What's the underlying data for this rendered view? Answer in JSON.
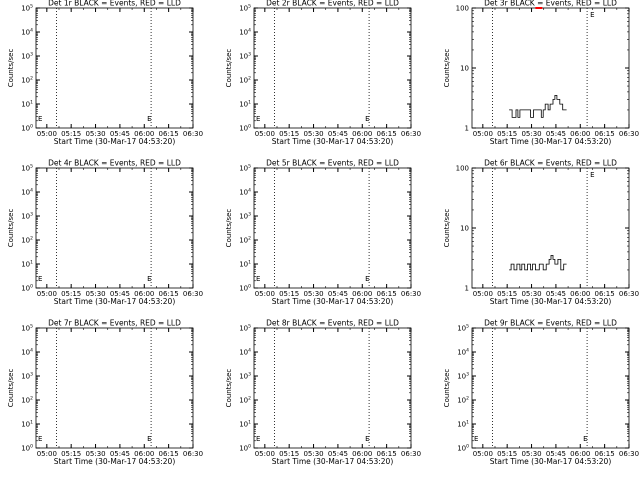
{
  "chart_data": [
    {
      "type": "line",
      "title": "Det 1r BLACK = Events, RED = LLD",
      "ylabel": "Counts/sec",
      "xlabel": "Start Time (30-Mar-17 04:53:20)",
      "yscale": "log",
      "ylim_exp": [
        0,
        5
      ],
      "flag_label": "E",
      "series": []
    },
    {
      "type": "line",
      "title": "Det 2r BLACK = Events, RED = LLD",
      "ylabel": "Counts/sec",
      "xlabel": "Start Time (30-Mar-17 04:53:20)",
      "yscale": "log",
      "ylim_exp": [
        0,
        5
      ],
      "flag_label": "E",
      "series": []
    },
    {
      "type": "line",
      "title": "Det 3r BLACK = Events, RED = LLD",
      "ylabel": "Counts/sec",
      "xlabel": "Start Time (30-Mar-17 04:53:20)",
      "yscale": "log",
      "ylim": [
        1,
        100
      ],
      "flag_label": "E",
      "series": [
        {
          "color": "#000000",
          "x": [
            5.27,
            5.3,
            5.3,
            5.34,
            5.34,
            5.36,
            5.36,
            5.38,
            5.38,
            5.49,
            5.49,
            5.52,
            5.52,
            5.55,
            5.55,
            5.6,
            5.6,
            5.62,
            5.62,
            5.64,
            5.64,
            5.67,
            5.67,
            5.69,
            5.69,
            5.72,
            5.72,
            5.74,
            5.74,
            5.76,
            5.76,
            5.79,
            5.79,
            5.82,
            5.82,
            5.86
          ],
          "y": [
            2,
            2,
            1.5,
            1.5,
            2,
            2,
            1.5,
            1.5,
            2,
            2,
            1.5,
            1.5,
            2,
            2,
            2,
            2,
            1.5,
            1.5,
            2,
            2,
            2.5,
            2.5,
            2,
            2,
            2.5,
            2.5,
            3,
            3,
            3.5,
            3.5,
            3,
            3,
            2.5,
            2.5,
            2,
            2
          ]
        },
        {
          "color": "#ff0000",
          "x": [
            5.54,
            5.61
          ],
          "y": [
            100,
            100
          ]
        }
      ]
    },
    {
      "type": "line",
      "title": "Det 4r BLACK = Events, RED = LLD",
      "ylabel": "Counts/sec",
      "xlabel": "Start Time (30-Mar-17 04:53:20)",
      "yscale": "log",
      "ylim_exp": [
        0,
        5
      ],
      "flag_label": "E",
      "series": []
    },
    {
      "type": "line",
      "title": "Det 5r BLACK = Events, RED = LLD",
      "ylabel": "Counts/sec",
      "xlabel": "Start Time (30-Mar-17 04:53:20)",
      "yscale": "log",
      "ylim_exp": [
        0,
        5
      ],
      "flag_label": "E",
      "series": []
    },
    {
      "type": "line",
      "title": "Det 6r BLACK = Events, RED = LLD",
      "ylabel": "Counts/sec",
      "xlabel": "Start Time (30-Mar-17 04:53:20)",
      "yscale": "log",
      "ylim": [
        1,
        100
      ],
      "flag_label": "E",
      "series": [
        {
          "color": "#000000",
          "x": [
            5.27,
            5.29,
            5.29,
            5.32,
            5.32,
            5.35,
            5.35,
            5.38,
            5.38,
            5.4,
            5.4,
            5.43,
            5.43,
            5.46,
            5.46,
            5.49,
            5.49,
            5.51,
            5.51,
            5.54,
            5.54,
            5.58,
            5.58,
            5.62,
            5.62,
            5.65,
            5.65,
            5.68,
            5.68,
            5.7,
            5.7,
            5.72,
            5.72,
            5.74,
            5.74,
            5.77,
            5.77,
            5.8,
            5.8,
            5.83,
            5.83,
            5.86
          ],
          "y": [
            2,
            2,
            2.5,
            2.5,
            2,
            2,
            2.5,
            2.5,
            2,
            2,
            2.5,
            2.5,
            2,
            2,
            2.5,
            2.5,
            2,
            2,
            2.5,
            2.5,
            2,
            2,
            2.5,
            2.5,
            2,
            2,
            2.5,
            2.5,
            3,
            3,
            3.5,
            3.5,
            3,
            3,
            2.5,
            2.5,
            3,
            3,
            2,
            2,
            2.5,
            2.5
          ]
        }
      ]
    },
    {
      "type": "line",
      "title": "Det 7r BLACK = Events, RED = LLD",
      "ylabel": "Counts/sec",
      "xlabel": "Start Time (30-Mar-17 04:53:20)",
      "yscale": "log",
      "ylim_exp": [
        0,
        5
      ],
      "flag_label": "E",
      "series": []
    },
    {
      "type": "line",
      "title": "Det 8r BLACK = Events, RED = LLD",
      "ylabel": "Counts/sec",
      "xlabel": "Start Time (30-Mar-17 04:53:20)",
      "yscale": "log",
      "ylim_exp": [
        0,
        5
      ],
      "flag_label": "E",
      "series": []
    },
    {
      "type": "line",
      "title": "Det 9r BLACK = Events, RED = LLD",
      "ylabel": "Counts/sec",
      "xlabel": "Start Time (30-Mar-17 04:53:20)",
      "yscale": "log",
      "ylim_exp": [
        0,
        5
      ],
      "flag_label": "E",
      "series": []
    }
  ],
  "x_axis": {
    "range": [
      4.889,
      6.5
    ],
    "tick_hours": [
      5.0,
      5.25,
      5.5,
      5.75,
      6.0,
      6.25,
      6.5
    ],
    "tick_labels": [
      "05:00",
      "05:15",
      "05:30",
      "05:45",
      "06:00",
      "06:15",
      "06:30"
    ],
    "dotted_lines_hours": [
      5.1,
      6.07
    ]
  }
}
